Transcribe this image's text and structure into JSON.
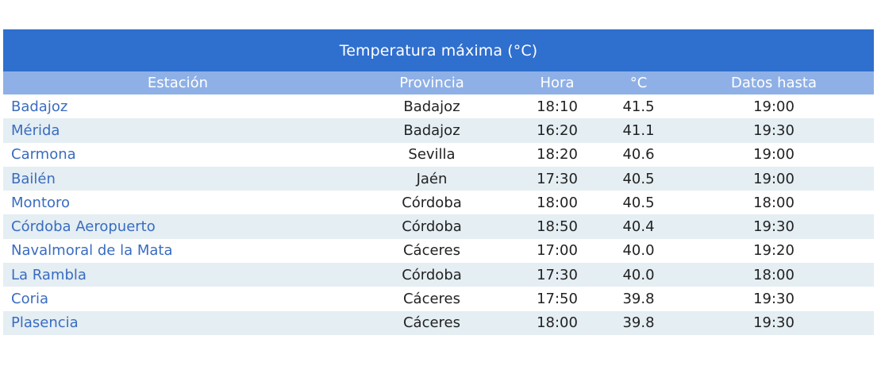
{
  "table": {
    "title": "Temperatura máxima (°C)",
    "headers": {
      "station": "Estación",
      "province": "Provincia",
      "time": "Hora",
      "temp": "°C",
      "until": "Datos hasta"
    },
    "rows": [
      {
        "station": "Badajoz",
        "province": "Badajoz",
        "time": "18:10",
        "temp": "41.5",
        "until": "19:00"
      },
      {
        "station": "Mérida",
        "province": "Badajoz",
        "time": "16:20",
        "temp": "41.1",
        "until": "19:30"
      },
      {
        "station": "Carmona",
        "province": "Sevilla",
        "time": "18:20",
        "temp": "40.6",
        "until": "19:00"
      },
      {
        "station": "Bailén",
        "province": "Jaén",
        "time": "17:30",
        "temp": "40.5",
        "until": "19:00"
      },
      {
        "station": "Montoro",
        "province": "Córdoba",
        "time": "18:00",
        "temp": "40.5",
        "until": "18:00"
      },
      {
        "station": "Córdoba Aeropuerto",
        "province": "Córdoba",
        "time": "18:50",
        "temp": "40.4",
        "until": "19:30"
      },
      {
        "station": "Navalmoral de la Mata",
        "province": "Cáceres",
        "time": "17:00",
        "temp": "40.0",
        "until": "19:20"
      },
      {
        "station": "La Rambla",
        "province": "Córdoba",
        "time": "17:30",
        "temp": "40.0",
        "until": "18:00"
      },
      {
        "station": "Coria",
        "province": "Cáceres",
        "time": "17:50",
        "temp": "39.8",
        "until": "19:30"
      },
      {
        "station": "Plasencia",
        "province": "Cáceres",
        "time": "18:00",
        "temp": "39.8",
        "until": "19:30"
      }
    ]
  },
  "colors": {
    "title_bg": "#2f6fce",
    "header_bg": "#8eb0e6",
    "row_alt_bg": "#e4eef3",
    "link": "#3a6cc0"
  }
}
